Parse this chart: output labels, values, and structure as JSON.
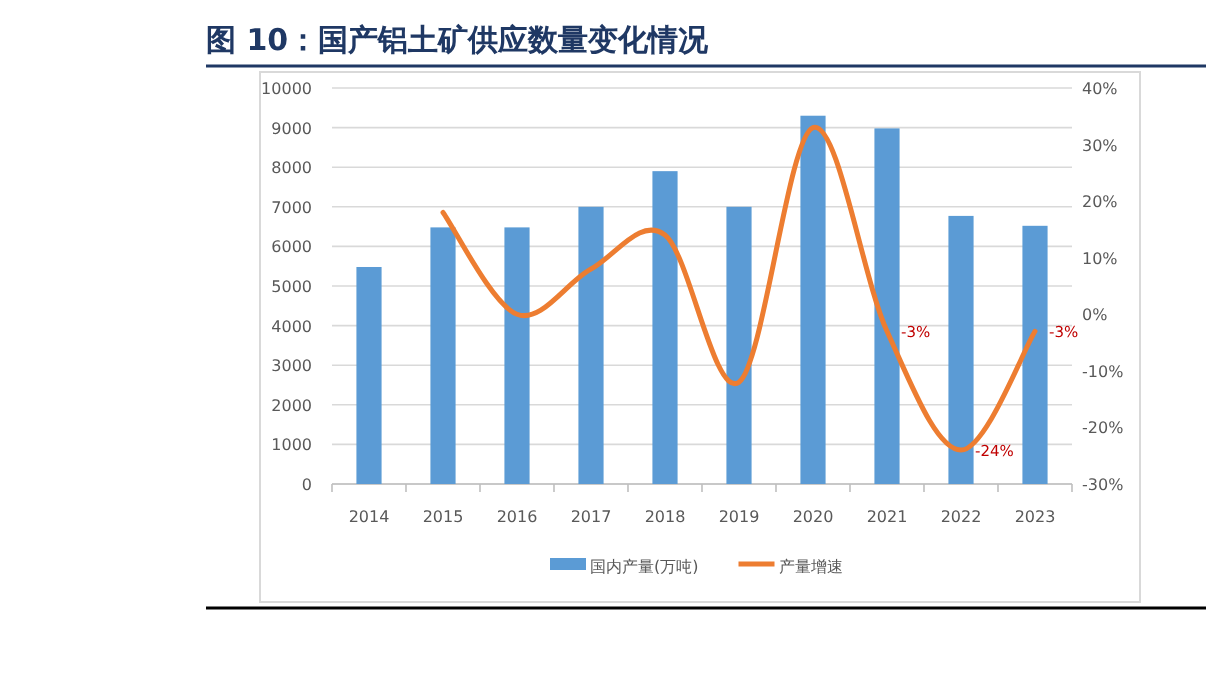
{
  "chart_data": {
    "type": "bar",
    "title": "图 10：国产铝土矿供应数量变化情况",
    "categories": [
      "2014",
      "2015",
      "2016",
      "2017",
      "2018",
      "2019",
      "2020",
      "2021",
      "2022",
      "2023"
    ],
    "series": [
      {
        "name": "国内产量(万吨)",
        "color": "#5b9bd5",
        "values": [
          5480,
          6480,
          6480,
          7000,
          7900,
          7000,
          9300,
          8980,
          6770,
          6520
        ]
      },
      {
        "name": "产量增速",
        "type": "line",
        "axis": "y2",
        "color": "#ed7d31",
        "values": [
          null,
          18,
          0,
          8,
          14,
          -12,
          33,
          -3,
          -24,
          -3
        ],
        "value_labels": [
          null,
          null,
          null,
          null,
          null,
          null,
          null,
          "-3%",
          "-24%",
          "-3%"
        ]
      }
    ],
    "ylim": [
      0,
      10000
    ],
    "yticks": [
      0,
      1000,
      2000,
      3000,
      4000,
      5000,
      6000,
      7000,
      8000,
      9000,
      10000
    ],
    "y2lim": [
      -30,
      40
    ],
    "y2ticks": [
      {
        "value": -30,
        "label": "-30%"
      },
      {
        "value": -20,
        "label": "-20%"
      },
      {
        "value": -10,
        "label": "-10%"
      },
      {
        "value": 0,
        "label": "0%"
      },
      {
        "value": 10,
        "label": "10%"
      },
      {
        "value": 20,
        "label": "20%"
      },
      {
        "value": 30,
        "label": "30%"
      },
      {
        "value": 40,
        "label": "40%"
      }
    ],
    "grid": "y",
    "legend": "bottom",
    "marker": "none"
  }
}
